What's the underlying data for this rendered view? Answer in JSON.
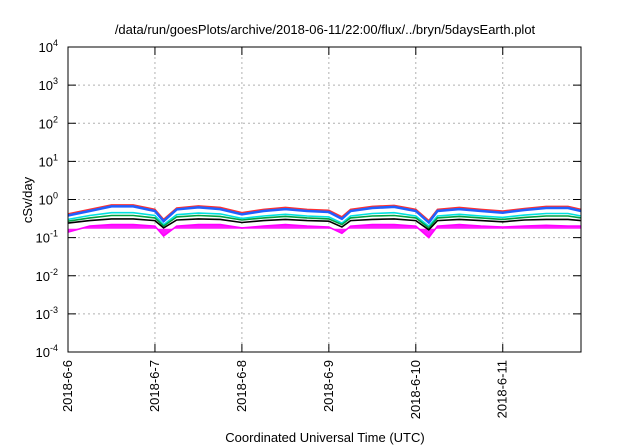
{
  "chart_data": {
    "type": "area",
    "title": "/data/run/goesPlots/archive/2018-06-11/22:00/flux/../bryn/5daysEarth.plot",
    "xlabel": "Coordinated Universal Time (UTC)",
    "ylabel": "cSv/day",
    "yscale": "log",
    "ylim": [
      0.0001,
      10000
    ],
    "xlim": [
      0,
      5.9
    ],
    "grid": true,
    "x_ticks": [
      {
        "label": "2018-6-6",
        "day": 0
      },
      {
        "label": "2018-6-7",
        "day": 1
      },
      {
        "label": "2018-6-8",
        "day": 2
      },
      {
        "label": "2018-6-9",
        "day": 3
      },
      {
        "label": "2018-6-10",
        "day": 4
      },
      {
        "label": "2018-6-11",
        "day": 5
      }
    ],
    "y_ticks": [
      {
        "base": "10",
        "exp": "-4",
        "value": 0.0001
      },
      {
        "base": "10",
        "exp": "-3",
        "value": 0.001
      },
      {
        "base": "10",
        "exp": "-2",
        "value": 0.01
      },
      {
        "base": "10",
        "exp": "-1",
        "value": 0.1
      },
      {
        "base": "10",
        "exp": "0",
        "value": 1
      },
      {
        "base": "10",
        "exp": "1",
        "value": 10
      },
      {
        "base": "10",
        "exp": "2",
        "value": 100
      },
      {
        "base": "10",
        "exp": "3",
        "value": 1000
      },
      {
        "base": "10",
        "exp": "4",
        "value": 10000
      }
    ],
    "x": [
      0,
      0.25,
      0.5,
      0.75,
      1,
      1.1,
      1.25,
      1.5,
      1.75,
      2,
      2.25,
      2.5,
      2.75,
      3,
      3.15,
      3.25,
      3.5,
      3.75,
      4,
      4.15,
      4.25,
      4.5,
      4.75,
      5,
      5.25,
      5.5,
      5.75,
      5.9
    ],
    "series": [
      {
        "color": "#ff00ff",
        "values": [
          0.14,
          0.2,
          0.22,
          0.22,
          0.2,
          0.11,
          0.2,
          0.22,
          0.22,
          0.18,
          0.2,
          0.22,
          0.2,
          0.19,
          0.13,
          0.2,
          0.22,
          0.22,
          0.2,
          0.1,
          0.2,
          0.22,
          0.2,
          0.19,
          0.2,
          0.21,
          0.2,
          0.2
        ]
      },
      {
        "color": "#ff3030",
        "values": [
          0.42,
          0.55,
          0.72,
          0.72,
          0.55,
          0.3,
          0.6,
          0.68,
          0.62,
          0.45,
          0.55,
          0.62,
          0.55,
          0.52,
          0.35,
          0.55,
          0.66,
          0.7,
          0.55,
          0.28,
          0.55,
          0.62,
          0.55,
          0.5,
          0.58,
          0.66,
          0.66,
          0.55
        ]
      },
      {
        "color": "#2060ff",
        "values": [
          0.38,
          0.5,
          0.66,
          0.66,
          0.5,
          0.27,
          0.55,
          0.62,
          0.56,
          0.41,
          0.5,
          0.56,
          0.5,
          0.47,
          0.31,
          0.5,
          0.6,
          0.64,
          0.5,
          0.25,
          0.5,
          0.56,
          0.5,
          0.45,
          0.53,
          0.6,
          0.6,
          0.5
        ]
      },
      {
        "color": "#00e0e0",
        "values": [
          0.3,
          0.38,
          0.45,
          0.45,
          0.38,
          0.22,
          0.4,
          0.44,
          0.42,
          0.32,
          0.37,
          0.41,
          0.37,
          0.35,
          0.24,
          0.37,
          0.43,
          0.45,
          0.37,
          0.2,
          0.37,
          0.41,
          0.37,
          0.34,
          0.39,
          0.43,
          0.43,
          0.37
        ]
      },
      {
        "color": "#00a040",
        "values": [
          0.27,
          0.33,
          0.38,
          0.38,
          0.33,
          0.2,
          0.35,
          0.38,
          0.36,
          0.29,
          0.33,
          0.36,
          0.33,
          0.31,
          0.22,
          0.33,
          0.37,
          0.38,
          0.33,
          0.18,
          0.33,
          0.36,
          0.33,
          0.3,
          0.34,
          0.37,
          0.37,
          0.33
        ]
      },
      {
        "color": "#000000",
        "values": [
          0.24,
          0.28,
          0.31,
          0.31,
          0.28,
          0.18,
          0.29,
          0.31,
          0.3,
          0.25,
          0.28,
          0.3,
          0.28,
          0.27,
          0.19,
          0.28,
          0.3,
          0.31,
          0.28,
          0.16,
          0.28,
          0.3,
          0.28,
          0.26,
          0.29,
          0.3,
          0.3,
          0.28
        ]
      }
    ]
  }
}
